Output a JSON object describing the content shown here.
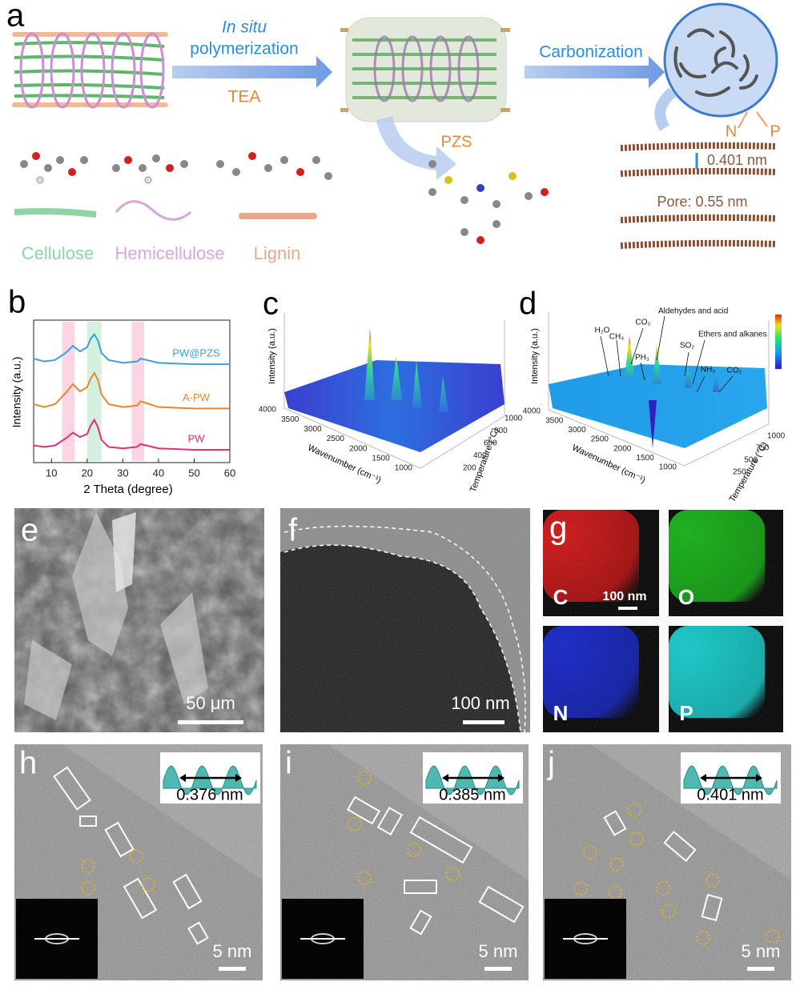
{
  "panel_a": {
    "label": "a",
    "arrow1_top": "In situ",
    "arrow1_middle": "polymerization",
    "arrow1_bottom": "TEA",
    "arrow2": "Carbonization",
    "pzs": "PZS",
    "dopants": [
      "N",
      "P"
    ],
    "interlayer": "0.401 nm",
    "pore": "Pore: 0.55 nm",
    "legend": [
      "Cellulose",
      "Hemicellulose",
      "Lignin"
    ]
  },
  "chart_data": {
    "type": "line",
    "panel_label": "b",
    "x_label": "2 Theta (degree)",
    "y_label": "Intensity (a.u.)",
    "x": [
      5,
      8,
      11,
      14,
      16,
      18,
      20,
      21,
      22,
      23,
      24,
      26,
      30,
      34,
      35,
      40,
      50,
      60
    ],
    "series": [
      {
        "name": "PW",
        "color": "#e0307a",
        "values": [
          1.2,
          1.1,
          1.2,
          1.7,
          2.1,
          1.8,
          2.0,
          2.6,
          3.0,
          2.5,
          1.6,
          1.1,
          1.0,
          1.1,
          1.3,
          1.0,
          0.9,
          0.9
        ]
      },
      {
        "name": "A-PW",
        "color": "#e8862e",
        "values": [
          4.1,
          3.9,
          4.1,
          4.9,
          5.5,
          5.0,
          5.3,
          5.9,
          6.3,
          5.8,
          4.8,
          4.1,
          3.9,
          4.0,
          4.3,
          3.9,
          3.8,
          3.8
        ]
      },
      {
        "name": "PW@PZS",
        "color": "#3aa0e0",
        "values": [
          7.3,
          7.1,
          7.2,
          7.7,
          8.2,
          7.8,
          8.1,
          8.7,
          9.0,
          8.6,
          7.7,
          7.2,
          7.0,
          7.1,
          7.3,
          7.0,
          6.9,
          6.9
        ]
      }
    ],
    "highlight_bands": [
      {
        "range": [
          13,
          16.5
        ],
        "color": "#fbd5e4"
      },
      {
        "range": [
          20,
          24
        ],
        "color": "#d5f0df"
      },
      {
        "range": [
          32.5,
          36
        ],
        "color": "#fbd5e4"
      }
    ],
    "xlim": [
      5,
      60
    ],
    "ylim": [
      0,
      10
    ],
    "xticks": [
      10,
      20,
      30,
      40,
      50,
      60
    ]
  },
  "panel_c": {
    "label": "c",
    "y_label": "Intensity (a.u.)",
    "x_label": "Wavenumber (cm⁻¹)",
    "z_label": "Temperature (°C)",
    "wavenumber_ticks": [
      4000,
      3500,
      3000,
      2500,
      2000,
      1500,
      1000
    ],
    "temperature_ticks": [
      200,
      400,
      600,
      800,
      1000
    ]
  },
  "panel_d": {
    "label": "d",
    "y_label": "Intensity (a.u.)",
    "x_label": "Wavenumber (cm⁻¹)",
    "z_label": "Temperature (°C)",
    "wavenumber_ticks": [
      4000,
      3500,
      3000,
      2500,
      2000,
      1500,
      1000
    ],
    "temperature_ticks": [
      250,
      500,
      750,
      1000
    ],
    "annotations": [
      "H₂O",
      "CH₄",
      "CO₂",
      "Aldehydes and acid",
      "PH₃",
      "SO₂",
      "Ethers and alkanes",
      "NH₃",
      "CO₂"
    ]
  },
  "panel_e": {
    "label": "e",
    "scale": "50 μm"
  },
  "panel_f": {
    "label": "f",
    "scale": "100 nm"
  },
  "panel_g": {
    "label": "g",
    "scale": "100 nm",
    "elements": [
      "C",
      "O",
      "N",
      "P"
    ]
  },
  "panel_h": {
    "label": "h",
    "spacing": "0.376 nm",
    "scale": "5 nm"
  },
  "panel_i": {
    "label": "i",
    "spacing": "0.385 nm",
    "scale": "5 nm"
  },
  "panel_j": {
    "label": "j",
    "spacing": "0.401 nm",
    "scale": "5 nm"
  }
}
